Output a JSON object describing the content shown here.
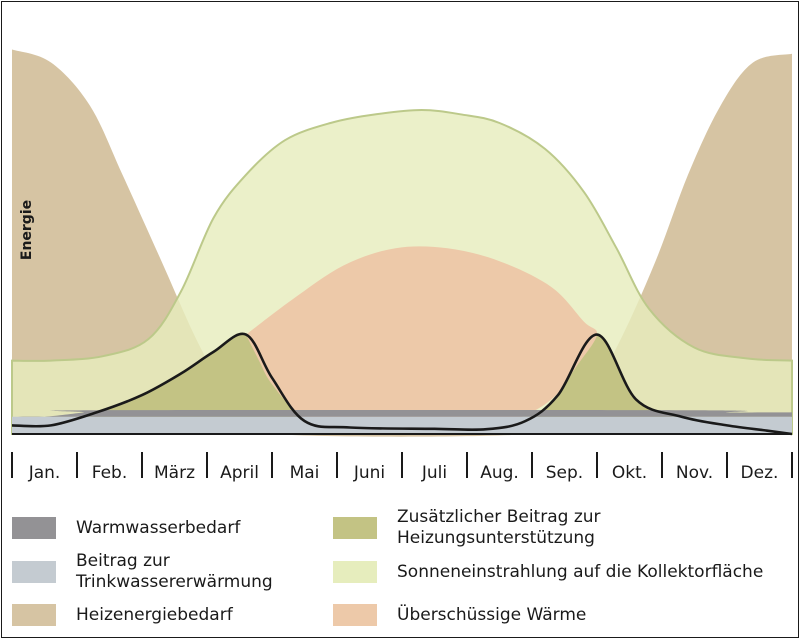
{
  "chart_data": {
    "type": "area",
    "title": "",
    "xlabel": "",
    "ylabel": "Energie",
    "categories": [
      "Jan.",
      "Feb.",
      "März",
      "April",
      "Mai",
      "Juni",
      "Juli",
      "Aug.",
      "Sep.",
      "Okt.",
      "Nov.",
      "Dez."
    ],
    "x_range": [
      0,
      12
    ],
    "ylim": [
      0,
      100
    ],
    "grid": false,
    "legend_position": "bottom",
    "series": [
      {
        "name": "Heizenergiebedarf",
        "color": "#d6c4a3",
        "points": [
          [
            0,
            89
          ],
          [
            0.6,
            86
          ],
          [
            1.2,
            76
          ],
          [
            1.7,
            60
          ],
          [
            2.3,
            40
          ],
          [
            2.9,
            20
          ],
          [
            3.5,
            5
          ],
          [
            4,
            0
          ],
          [
            8,
            0
          ],
          [
            8.7,
            5
          ],
          [
            9.3,
            20
          ],
          [
            9.9,
            40
          ],
          [
            10.4,
            60
          ],
          [
            10.9,
            76
          ],
          [
            11.4,
            86
          ],
          [
            12,
            88
          ]
        ]
      },
      {
        "name": "Sonneneinstrahlung auf die Kollektorfläche",
        "color": "#e6edbd",
        "points": [
          [
            0,
            17
          ],
          [
            0.6,
            17
          ],
          [
            1.4,
            18
          ],
          [
            2.1,
            22
          ],
          [
            2.6,
            33
          ],
          [
            3.1,
            50
          ],
          [
            3.6,
            60
          ],
          [
            4.2,
            68
          ],
          [
            4.9,
            72
          ],
          [
            5.6,
            74
          ],
          [
            6.3,
            75
          ],
          [
            6.9,
            74
          ],
          [
            7.5,
            72
          ],
          [
            8.2,
            66
          ],
          [
            8.8,
            56
          ],
          [
            9.3,
            43
          ],
          [
            9.8,
            29
          ],
          [
            10.5,
            20
          ],
          [
            11.3,
            17.5
          ],
          [
            12,
            17
          ]
        ]
      },
      {
        "name": "Zusätzlicher Beitrag zur Heizungsunterstützung",
        "color": "#c3c384",
        "points": [
          [
            0,
            0
          ],
          [
            12,
            0
          ]
        ]
      },
      {
        "name": "Überschüssige Wärme",
        "color": "#edc9a9",
        "points": [
          [
            3.6,
            23
          ],
          [
            4.3,
            31
          ],
          [
            5.1,
            39
          ],
          [
            5.9,
            43
          ],
          [
            6.7,
            43
          ],
          [
            7.5,
            40
          ],
          [
            8.3,
            34
          ],
          [
            8.8,
            26
          ],
          [
            9,
            23
          ],
          [
            8.7,
            16
          ],
          [
            8.3,
            8
          ],
          [
            7.7,
            3
          ],
          [
            7.2,
            1
          ],
          [
            5.9,
            1.3
          ],
          [
            4.9,
            1.5
          ],
          [
            4.5,
            3
          ],
          [
            4,
            11.5
          ],
          [
            3.8,
            17
          ],
          [
            3.6,
            23
          ]
        ]
      },
      {
        "name": "Beitrag zur\nTrinkwassererwärmung",
        "color": "#c4cbd1",
        "points": [
          [
            0,
            4
          ],
          [
            12,
            4
          ]
        ]
      },
      {
        "name": "Warmwasserbedarf",
        "color": "#939295",
        "points": [
          [
            0,
            4
          ],
          [
            0.5,
            4
          ],
          [
            1.1,
            5
          ],
          [
            1.3,
            5.5
          ],
          [
            10.5,
            5.5
          ],
          [
            11,
            5
          ],
          [
            11.6,
            5
          ],
          [
            12,
            5
          ]
        ]
      }
    ],
    "total_heat_curve": {
      "color": "#1a1a1a",
      "points": [
        [
          0,
          2
        ],
        [
          0.6,
          2
        ],
        [
          1.3,
          5
        ],
        [
          2,
          9
        ],
        [
          2.6,
          14
        ],
        [
          3.1,
          19
        ],
        [
          3.6,
          23
        ],
        [
          4,
          13
        ],
        [
          4.5,
          3
        ],
        [
          5.2,
          1.5
        ],
        [
          6.5,
          1.2
        ],
        [
          7.3,
          1.1
        ],
        [
          7.9,
          3
        ],
        [
          8.4,
          9
        ],
        [
          9,
          23
        ],
        [
          9.6,
          8
        ],
        [
          10.3,
          4
        ],
        [
          11,
          2
        ],
        [
          11.6,
          0.8
        ],
        [
          12,
          0
        ]
      ]
    }
  },
  "legend": [
    {
      "label": "Warmwasserbedarf",
      "color": "#939295"
    },
    {
      "label": "Zusätzlicher Beitrag zur Heizungsunterstützung",
      "color": "#c3c384"
    },
    {
      "label": "Beitrag zur\nTrinkwassererwärmung",
      "color": "#c4cbd1"
    },
    {
      "label": "Sonneneinstrahlung auf die Kollektorfläche",
      "color": "#e6edbd"
    },
    {
      "label": "Heizenergiebedarf",
      "color": "#d6c4a3"
    },
    {
      "label": "Überschüssige Wärme",
      "color": "#edc9a9"
    }
  ]
}
